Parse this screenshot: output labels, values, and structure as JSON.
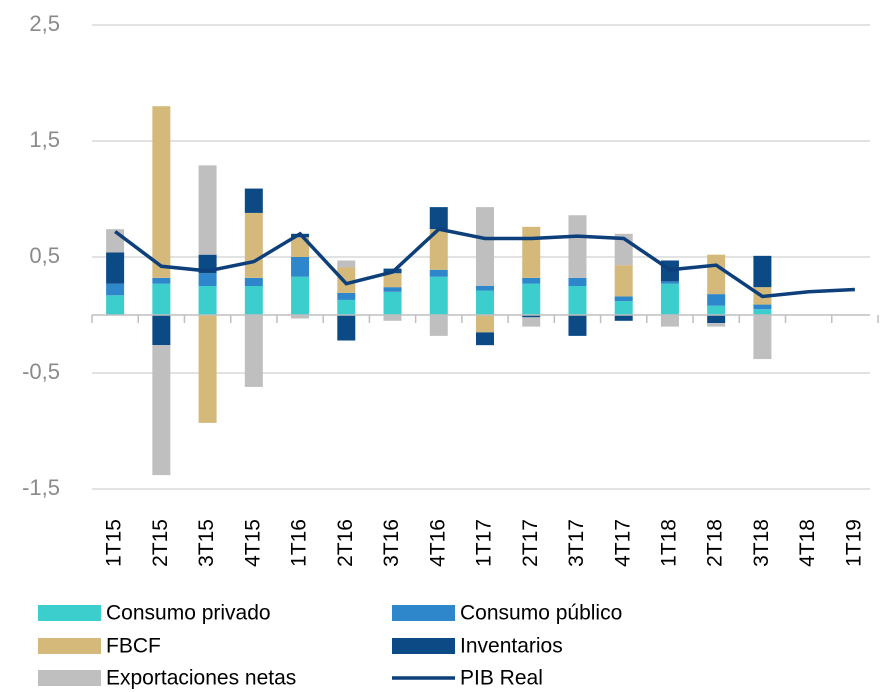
{
  "chart_data": {
    "type": "bar",
    "categories": [
      "1T15",
      "2T15",
      "3T15",
      "4T15",
      "1T16",
      "2T16",
      "3T16",
      "4T16",
      "1T17",
      "2T17",
      "3T17",
      "4T17",
      "1T18",
      "2T18",
      "3T18",
      "4T18",
      "1T19"
    ],
    "series": [
      {
        "name": "Consumo privado",
        "color": "#3ccdcd",
        "values": [
          0.17,
          0.27,
          0.25,
          0.25,
          0.33,
          0.13,
          0.2,
          0.33,
          0.21,
          0.27,
          0.25,
          0.12,
          0.27,
          0.08,
          0.05,
          null,
          null
        ]
      },
      {
        "name": "Consumo público",
        "color": "#2e86cb",
        "values": [
          0.1,
          0.05,
          0.11,
          0.07,
          0.17,
          0.06,
          0.04,
          0.06,
          0.04,
          0.05,
          0.07,
          0.04,
          0.02,
          0.1,
          0.04,
          null,
          null
        ]
      },
      {
        "name": "FBCF",
        "color": "#d5b97b",
        "values": [
          0,
          1.48,
          -0.93,
          0.56,
          0.17,
          0.22,
          0.12,
          0.35,
          -0.15,
          0.44,
          0,
          0.27,
          0,
          0.34,
          0.15,
          null,
          null
        ]
      },
      {
        "name": "Inventarios",
        "color": "#0c4a86",
        "values": [
          0.27,
          -0.26,
          0.16,
          0.21,
          0.03,
          -0.22,
          0.04,
          0.19,
          -0.11,
          -0.02,
          -0.18,
          -0.05,
          0.18,
          -0.07,
          0.27,
          null,
          null
        ]
      },
      {
        "name": "Exportaciones netas",
        "color": "#bfbfbf",
        "values": [
          0.2,
          -1.12,
          0.77,
          -0.62,
          -0.03,
          0.06,
          -0.05,
          -0.18,
          0.68,
          -0.08,
          0.54,
          0.27,
          -0.1,
          -0.03,
          -0.38,
          null,
          null
        ]
      },
      {
        "name": "PIB Real",
        "type": "line",
        "color": "#0d3f7a",
        "values": [
          0.72,
          0.42,
          0.38,
          0.46,
          0.7,
          0.27,
          0.37,
          0.74,
          0.66,
          0.66,
          0.68,
          0.66,
          0.39,
          0.43,
          0.16,
          0.2,
          0.22
        ]
      }
    ],
    "ylim": [
      -1.5,
      2.5
    ],
    "yticks": [
      {
        "value": 2.5,
        "label": "2,5"
      },
      {
        "value": 1.5,
        "label": "1,5"
      },
      {
        "value": 0.5,
        "label": "0,5"
      },
      {
        "value": -0.5,
        "label": "-0,5"
      },
      {
        "value": -1.5,
        "label": "-1,5"
      }
    ],
    "grid": true
  }
}
